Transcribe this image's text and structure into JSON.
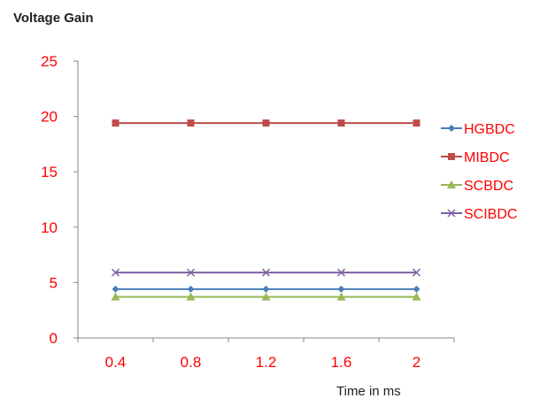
{
  "chart_data": {
    "type": "line",
    "ylabel": "Voltage Gain",
    "xlabel": "Time in ms",
    "categories": [
      "0.4",
      "0.8",
      "1.2",
      "1.6",
      "2"
    ],
    "ylim": [
      0,
      25
    ],
    "yticks": [
      0,
      5,
      10,
      15,
      20,
      25
    ],
    "grid": false,
    "legend_position": "right",
    "tick_label_color": "#ff0000",
    "series": [
      {
        "name": "HGBDC",
        "values": [
          4.4,
          4.4,
          4.4,
          4.4,
          4.4
        ],
        "color": "#4a7ebb",
        "marker": "diamond"
      },
      {
        "name": "MIBDC",
        "values": [
          19.4,
          19.4,
          19.4,
          19.4,
          19.4
        ],
        "color": "#be4b48",
        "marker": "square"
      },
      {
        "name": "SCBDC",
        "values": [
          3.7,
          3.7,
          3.7,
          3.7,
          3.7
        ],
        "color": "#98b954",
        "marker": "triangle"
      },
      {
        "name": "SCIBDC",
        "values": [
          5.9,
          5.9,
          5.9,
          5.9,
          5.9
        ],
        "color": "#7d60a0",
        "marker": "x"
      }
    ]
  }
}
